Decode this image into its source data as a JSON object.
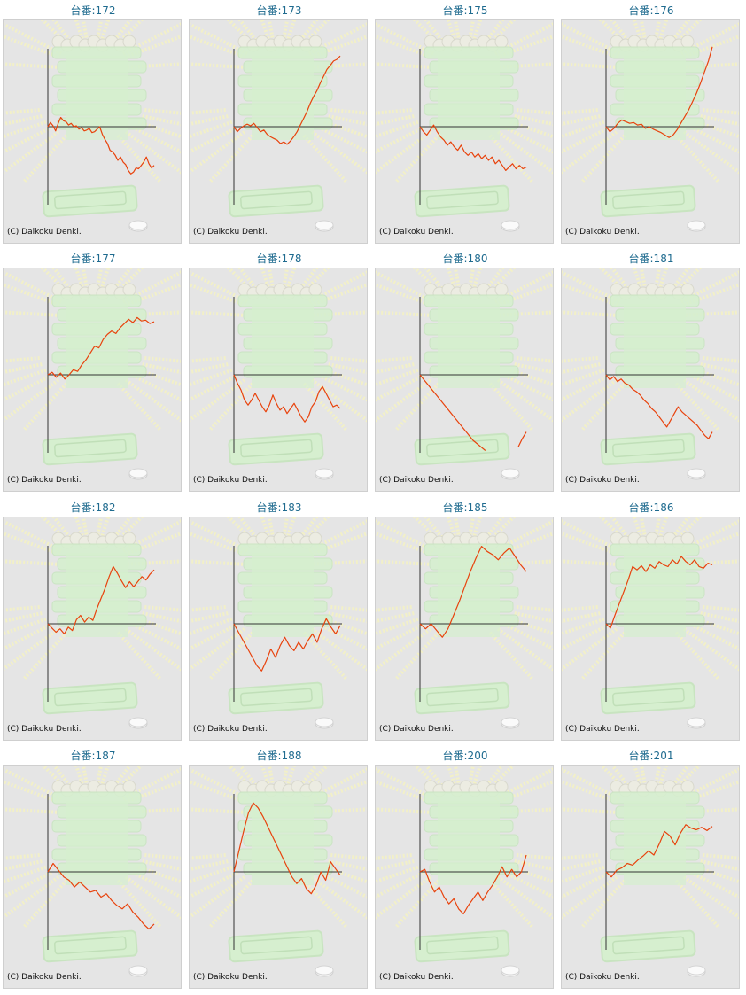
{
  "copyright": "(C) Daikoku Denki.",
  "colors": {
    "line": "#e8420c",
    "axis": "#333333",
    "background": "#e5e5e5",
    "label": "#1f6b8f",
    "ray": "#f2f0c8",
    "machine": "#d6efcf"
  },
  "chart_data": [
    {
      "type": "line",
      "title": "台番:172",
      "values": [
        0,
        0.5,
        0.1,
        -0.5,
        0.4,
        1.1,
        0.7,
        0.6,
        0.2,
        0.4,
        0,
        0.1,
        -0.3,
        -0.1,
        -0.5,
        -0.4,
        -0.2,
        -0.7,
        -0.6,
        -0.3,
        0,
        -0.9,
        -1.5,
        -2,
        -2.8,
        -3,
        -3.4,
        -4,
        -3.6,
        -4.2,
        -4.5,
        -5.2,
        -5.6,
        -5.4,
        -4.9,
        -5,
        -4.6,
        -4.2,
        -3.6,
        -4.4,
        -4.9,
        -4.6
      ]
    },
    {
      "type": "line",
      "title": "台番:173",
      "values": [
        0,
        -0.6,
        -0.2,
        0.1,
        0.3,
        0.1,
        0.4,
        -0.1,
        -0.6,
        -0.4,
        -0.9,
        -1.2,
        -1.4,
        -1.6,
        -2,
        -1.8,
        -2.1,
        -1.7,
        -1.2,
        -0.6,
        0.2,
        1,
        1.8,
        2.8,
        3.6,
        4.3,
        5.2,
        6,
        6.8,
        7.3,
        7.8,
        8,
        8.4
      ]
    },
    {
      "type": "line",
      "title": "台番:175",
      "values": [
        0,
        -0.6,
        -1,
        -0.4,
        0.2,
        -0.6,
        -1.2,
        -1.6,
        -2.2,
        -1.8,
        -2.4,
        -2.8,
        -2.2,
        -3,
        -3.4,
        -3,
        -3.6,
        -3.2,
        -3.8,
        -3.4,
        -4,
        -3.6,
        -4.4,
        -4,
        -4.6,
        -5.2,
        -4.8,
        -4.4,
        -5,
        -4.6,
        -5,
        -4.8
      ]
    },
    {
      "type": "line",
      "title": "台番:176",
      "values": [
        0,
        -0.6,
        -0.2,
        0.4,
        0.8,
        0.6,
        0.4,
        0.5,
        0.2,
        0.3,
        -0.2,
        0,
        -0.3,
        -0.5,
        -0.7,
        -1,
        -1.3,
        -1,
        -0.4,
        0.4,
        1.2,
        2,
        3,
        4,
        5.2,
        6.5,
        7.8,
        9.5
      ]
    },
    {
      "type": "line",
      "title": "台番:177",
      "values": [
        0,
        0.3,
        -0.3,
        0.2,
        -0.5,
        0,
        0.6,
        0.4,
        1.2,
        1.8,
        2.6,
        3.4,
        3.2,
        4.2,
        4.8,
        5.2,
        4.9,
        5.6,
        6.1,
        6.6,
        6.2,
        6.8,
        6.4,
        6.5,
        6.1,
        6.3
      ]
    },
    {
      "type": "line",
      "title": "台番:178",
      "values": [
        0,
        -1,
        -1.8,
        -3,
        -3.6,
        -3,
        -2.2,
        -3,
        -3.8,
        -4.4,
        -3.6,
        -2.4,
        -3.4,
        -4.2,
        -3.8,
        -4.6,
        -4,
        -3.4,
        -4.2,
        -5,
        -5.6,
        -5,
        -3.8,
        -3.2,
        -2,
        -1.4,
        -2.2,
        -3,
        -3.8,
        -3.6,
        -4
      ]
    },
    {
      "type": "line",
      "title": "台番:180",
      "values": [
        0,
        -0.6,
        -1.2,
        -1.8,
        -2.4,
        -3,
        -3.6,
        -4.2,
        -4.8,
        -5.4,
        -6,
        -6.6,
        -7.2,
        -7.8,
        -8.2,
        -8.6,
        -9,
        null,
        null,
        null,
        null,
        null,
        null,
        null,
        -8.6,
        -7.6,
        -6.8
      ]
    },
    {
      "type": "line",
      "title": "台番:181",
      "values": [
        0,
        -0.6,
        -0.2,
        -0.8,
        -0.5,
        -1,
        -1.2,
        -1.7,
        -2,
        -2.4,
        -3,
        -3.4,
        -4,
        -4.4,
        -5,
        -5.6,
        -6.2,
        -5.4,
        -4.6,
        -3.8,
        -4.4,
        -4.8,
        -5.2,
        -5.6,
        -6,
        -6.6,
        -7.2,
        -7.6,
        -6.8
      ]
    },
    {
      "type": "line",
      "title": "台番:182",
      "values": [
        0,
        -0.5,
        -1,
        -0.6,
        -1.2,
        -0.4,
        -0.8,
        0.5,
        1,
        0.2,
        0.8,
        0.4,
        1.8,
        3,
        4.2,
        5.6,
        6.8,
        6,
        5.1,
        4.3,
        5,
        4.4,
        5,
        5.6,
        5.2,
        5.9,
        6.4
      ]
    },
    {
      "type": "line",
      "title": "台番:183",
      "values": [
        0,
        -1,
        -2,
        -3,
        -4,
        -5,
        -5.6,
        -4.4,
        -3,
        -4,
        -2.6,
        -1.6,
        -2.6,
        -3.2,
        -2.2,
        -3,
        -2,
        -1.2,
        -2.2,
        -0.6,
        0.6,
        -0.4,
        -1.2,
        -0.2
      ]
    },
    {
      "type": "line",
      "title": "台番:185",
      "values": [
        0,
        -0.6,
        0,
        -0.8,
        -1.6,
        -0.6,
        1,
        2.6,
        4.4,
        6.2,
        7.8,
        9.2,
        8.6,
        8.2,
        7.6,
        8.4,
        9,
        8,
        7,
        6.2
      ]
    },
    {
      "type": "line",
      "title": "台番:186",
      "values": [
        0,
        -0.5,
        1,
        2.4,
        3.8,
        5.2,
        6.8,
        6.4,
        6.9,
        6.2,
        7,
        6.6,
        7.4,
        7,
        6.8,
        7.6,
        7.1,
        8,
        7.4,
        7,
        7.6,
        6.8,
        6.6,
        7.2,
        7
      ]
    },
    {
      "type": "line",
      "title": "台番:187",
      "values": [
        0,
        1,
        0.2,
        -0.6,
        -1,
        -1.8,
        -1.2,
        -1.8,
        -2.4,
        -2.2,
        -3,
        -2.6,
        -3.4,
        -4,
        -4.4,
        -3.8,
        -4.8,
        -5.4,
        -6.2,
        -6.8,
        -6.2
      ]
    },
    {
      "type": "line",
      "title": "台番:188",
      "values": [
        0,
        2.4,
        4.8,
        7,
        8.2,
        7.6,
        6.6,
        5.4,
        4.2,
        3,
        1.8,
        0.6,
        -0.6,
        -1.4,
        -0.8,
        -2,
        -2.6,
        -1.6,
        0,
        -1,
        1.2,
        0.4,
        -0.4
      ]
    },
    {
      "type": "line",
      "title": "台番:200",
      "values": [
        0,
        0.3,
        -1.2,
        -2.4,
        -1.8,
        -3,
        -3.8,
        -3.2,
        -4.4,
        -5,
        -4,
        -3.2,
        -2.4,
        -3.4,
        -2.4,
        -1.6,
        -0.6,
        0.6,
        -0.6,
        0.3,
        -0.6,
        0,
        2
      ]
    },
    {
      "type": "line",
      "title": "台番:201",
      "values": [
        0,
        -0.6,
        0.2,
        0.5,
        1,
        0.8,
        1.4,
        1.9,
        2.5,
        2,
        3.3,
        4.8,
        4.3,
        3.2,
        4.6,
        5.6,
        5.2,
        5,
        5.3,
        4.9,
        5.4
      ]
    }
  ]
}
